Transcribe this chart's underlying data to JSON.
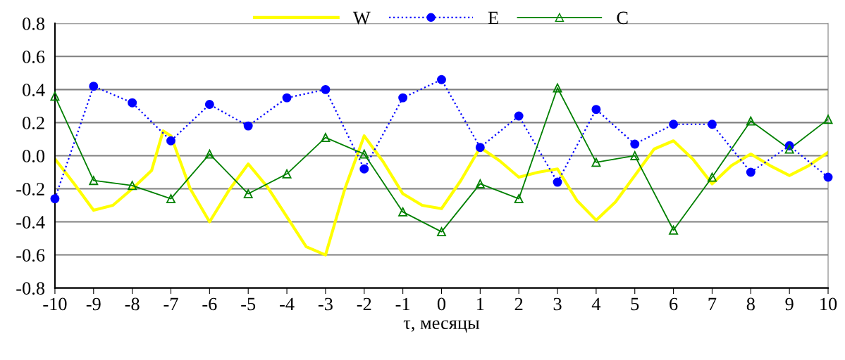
{
  "chart_data": {
    "type": "line",
    "xlabel": "τ, месяцы",
    "xlim": [
      -10,
      10
    ],
    "xticks": [
      -10,
      -9,
      -8,
      -7,
      -6,
      -5,
      -4,
      -3,
      -2,
      -1,
      0,
      1,
      2,
      3,
      4,
      5,
      6,
      7,
      8,
      9,
      10
    ],
    "ylim": [
      -0.8,
      0.8
    ],
    "yticks": [
      {
        "value": -0.8,
        "label": "-0.8"
      },
      {
        "value": -0.6,
        "label": "-0.6"
      },
      {
        "value": -0.4,
        "label": "-0.4"
      },
      {
        "value": -0.2,
        "label": "-0.2"
      },
      {
        "value": 0,
        "label": "0.0"
      },
      {
        "value": 0.2,
        "label": "0.2"
      },
      {
        "value": 0.4,
        "label": "0.4"
      },
      {
        "value": 0.6,
        "label": "0.6"
      },
      {
        "value": 0.8,
        "label": "0.8"
      }
    ],
    "grid": "y",
    "legend": "top",
    "series": [
      {
        "name": "W",
        "color": "#ffff00",
        "marker": "none",
        "line_style": "solid",
        "x": [
          -10,
          -9.5,
          -9,
          -8.5,
          -8,
          -7.5,
          -7.2,
          -7,
          -6.5,
          -6,
          -5.5,
          -5,
          -4.5,
          -4,
          -3.5,
          -3,
          -2.5,
          -2,
          -1.5,
          -1,
          -0.5,
          0,
          0.5,
          1,
          1.5,
          2,
          2.5,
          3,
          3.5,
          4,
          4.5,
          5,
          5.5,
          6,
          6.5,
          7,
          7.5,
          8,
          8.5,
          9,
          9.5,
          10
        ],
        "values": [
          -0.02,
          -0.17,
          -0.33,
          -0.3,
          -0.2,
          -0.09,
          0.15,
          0.12,
          -0.2,
          -0.4,
          -0.21,
          -0.05,
          -0.19,
          -0.37,
          -0.55,
          -0.6,
          -0.2,
          0.12,
          -0.04,
          -0.23,
          -0.3,
          -0.32,
          -0.15,
          0.05,
          -0.03,
          -0.13,
          -0.1,
          -0.08,
          -0.27,
          -0.39,
          -0.28,
          -0.12,
          0.04,
          0.09,
          -0.02,
          -0.17,
          -0.06,
          0.01,
          -0.06,
          -0.12,
          -0.06,
          0.02
        ]
      },
      {
        "name": "E",
        "color": "#0000ff",
        "marker": "circle",
        "line_style": "dotted",
        "x": [
          -10,
          -9,
          -8,
          -7,
          -6,
          -5,
          -4,
          -3,
          -2,
          -1,
          0,
          1,
          2,
          3,
          4,
          5,
          6,
          7,
          8,
          9,
          10
        ],
        "values": [
          -0.26,
          0.42,
          0.32,
          0.09,
          0.31,
          0.18,
          0.35,
          0.4,
          -0.08,
          0.35,
          0.46,
          0.05,
          0.24,
          -0.16,
          0.28,
          0.07,
          0.19,
          0.19,
          -0.1,
          0.06,
          -0.13
        ]
      },
      {
        "name": "C",
        "color": "#008000",
        "marker": "triangle",
        "line_style": "solid",
        "x": [
          -10,
          -9,
          -8,
          -7,
          -6,
          -5,
          -4,
          -3,
          -2,
          -1,
          0,
          1,
          2,
          3,
          4,
          5,
          6,
          7,
          8,
          9,
          10
        ],
        "values": [
          0.36,
          -0.15,
          -0.18,
          -0.26,
          0.01,
          -0.23,
          -0.11,
          0.11,
          0.01,
          -0.34,
          -0.46,
          -0.17,
          -0.26,
          0.41,
          -0.04,
          0.0,
          -0.45,
          -0.13,
          0.21,
          0.04,
          0.22
        ]
      }
    ]
  }
}
